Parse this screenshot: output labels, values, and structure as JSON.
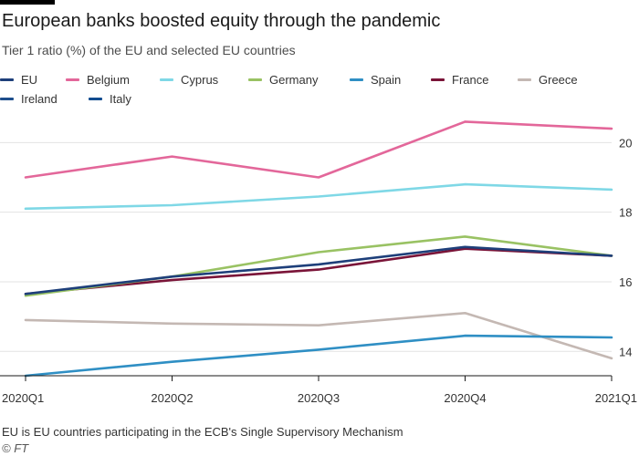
{
  "header": {
    "title": "European banks boosted equity through the pandemic",
    "subtitle": "Tier 1 ratio (%) of the EU and selected EU countries"
  },
  "footer": {
    "note": "EU is EU countries participating in the ECB's Single Supervisory Mechanism",
    "source": "© FT"
  },
  "chart_data": {
    "type": "line",
    "title": "European banks boosted equity through the pandemic",
    "subtitle": "Tier 1 ratio (%) of the EU and selected EU countries",
    "xlabel": "",
    "ylabel": "",
    "categories": [
      "2020Q1",
      "2020Q2",
      "2020Q3",
      "2020Q4",
      "2021Q1"
    ],
    "yticks": [
      14,
      16,
      18,
      20
    ],
    "ylim": [
      13.3,
      20.9
    ],
    "grid": true,
    "legend_position": "top",
    "y_axis_side": "right",
    "series": [
      {
        "name": "EU",
        "color": "#1e3f7a",
        "values": [
          15.65,
          16.15,
          16.5,
          17.0,
          16.75
        ]
      },
      {
        "name": "Belgium",
        "color": "#e3679a",
        "values": [
          19.0,
          19.6,
          19.0,
          20.6,
          20.4
        ]
      },
      {
        "name": "Cyprus",
        "color": "#7fd8e6",
        "values": [
          18.1,
          18.2,
          18.45,
          18.8,
          18.65
        ]
      },
      {
        "name": "Germany",
        "color": "#99c263",
        "values": [
          15.6,
          16.15,
          16.85,
          17.3,
          16.75
        ]
      },
      {
        "name": "Spain",
        "color": "#2f8fc4",
        "values": [
          13.3,
          13.7,
          14.05,
          14.45,
          14.4
        ]
      },
      {
        "name": "France",
        "color": "#7a1438",
        "values": [
          15.65,
          16.05,
          16.35,
          16.95,
          16.75
        ]
      },
      {
        "name": "Greece",
        "color": "#c4b8b3",
        "values": [
          14.9,
          14.8,
          14.75,
          15.1,
          13.8
        ]
      },
      {
        "name": "Ireland",
        "color": "#1e4e8c",
        "values": [
          null,
          null,
          null,
          null,
          null
        ]
      },
      {
        "name": "Italy",
        "color": "#124c8f",
        "values": [
          null,
          null,
          null,
          null,
          null
        ]
      }
    ]
  }
}
